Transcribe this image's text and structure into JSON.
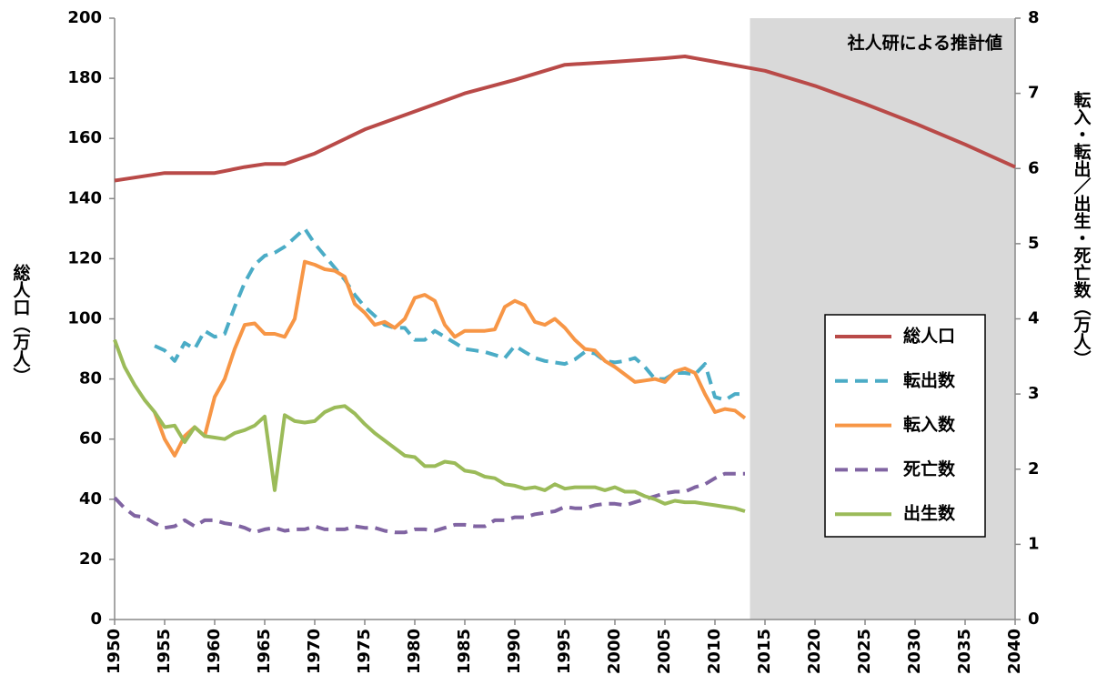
{
  "chart_data": {
    "type": "line",
    "y_label": "総人口（万人）",
    "y2_label": "転入・転出／出生・死亡数（万人）",
    "annotation": {
      "text": "社人研による推計値",
      "x_from": 2013.5,
      "x_to": 2040,
      "color": "#d9d9d9"
    },
    "xlim": [
      1950,
      2040
    ],
    "xticks": [
      1950,
      1955,
      1960,
      1965,
      1970,
      1975,
      1980,
      1985,
      1990,
      1995,
      2000,
      2005,
      2010,
      2015,
      2020,
      2025,
      2030,
      2035,
      2040
    ],
    "ylim": [
      0,
      200
    ],
    "yticks": [
      0,
      20,
      40,
      60,
      80,
      100,
      120,
      140,
      160,
      180,
      200
    ],
    "y2lim": [
      0,
      8
    ],
    "y2ticks": [
      0,
      1,
      2,
      3,
      4,
      5,
      6,
      7,
      8
    ],
    "series": [
      {
        "name": "総人口",
        "color": "#b94a48",
        "dashed": false,
        "axis": "y",
        "x": [
          1950,
          1952,
          1955,
          1960,
          1963,
          1965,
          1967,
          1970,
          1975,
          1980,
          1985,
          1990,
          1995,
          2000,
          2005,
          2007,
          2010,
          2015,
          2020,
          2025,
          2030,
          2035,
          2040
        ],
        "values": [
          146,
          147,
          148.5,
          148.5,
          150.5,
          151.5,
          151.5,
          155,
          163,
          169,
          175,
          179.5,
          184.5,
          185.5,
          186.7,
          187.3,
          185.5,
          182.5,
          177.5,
          171.5,
          165,
          158,
          150.5
        ]
      },
      {
        "name": "転出数",
        "color": "#4bacc6",
        "dashed": true,
        "axis": "y2",
        "x": [
          1954,
          1955,
          1956,
          1957,
          1958,
          1959,
          1960,
          1961,
          1962,
          1963,
          1964,
          1965,
          1966,
          1967,
          1968,
          1969,
          1970,
          1971,
          1972,
          1973,
          1974,
          1975,
          1976,
          1977,
          1978,
          1979,
          1980,
          1981,
          1982,
          1983,
          1984,
          1985,
          1986,
          1987,
          1988,
          1989,
          1990,
          1991,
          1992,
          1993,
          1994,
          1995,
          1996,
          1997,
          1998,
          1999,
          2000,
          2001,
          2002,
          2003,
          2004,
          2005,
          2006,
          2007,
          2008,
          2009,
          2010,
          2011,
          2012,
          2013
        ],
        "values": [
          3.64,
          3.58,
          3.44,
          3.68,
          3.6,
          3.84,
          3.76,
          3.8,
          4.16,
          4.48,
          4.72,
          4.84,
          4.88,
          4.96,
          5.08,
          5.2,
          5.0,
          4.84,
          4.68,
          4.52,
          4.32,
          4.16,
          4.04,
          3.92,
          3.88,
          3.88,
          3.72,
          3.72,
          3.84,
          3.76,
          3.68,
          3.6,
          3.58,
          3.56,
          3.52,
          3.48,
          3.64,
          3.56,
          3.48,
          3.44,
          3.42,
          3.4,
          3.46,
          3.56,
          3.54,
          3.44,
          3.42,
          3.44,
          3.48,
          3.36,
          3.2,
          3.2,
          3.28,
          3.28,
          3.26,
          3.4,
          2.96,
          2.92,
          3.0,
          3.0
        ]
      },
      {
        "name": "転入数",
        "color": "#f79646",
        "dashed": false,
        "axis": "y2",
        "x": [
          1954,
          1955,
          1956,
          1957,
          1958,
          1959,
          1960,
          1961,
          1962,
          1963,
          1964,
          1965,
          1966,
          1967,
          1968,
          1969,
          1970,
          1971,
          1972,
          1973,
          1974,
          1975,
          1976,
          1977,
          1978,
          1979,
          1980,
          1981,
          1982,
          1983,
          1984,
          1985,
          1986,
          1987,
          1988,
          1989,
          1990,
          1991,
          1992,
          1993,
          1994,
          1995,
          1996,
          1997,
          1998,
          1999,
          2000,
          2001,
          2002,
          2003,
          2004,
          2005,
          2006,
          2007,
          2008,
          2009,
          2010,
          2011,
          2012,
          2013
        ],
        "values": [
          2.76,
          2.4,
          2.18,
          2.44,
          2.56,
          2.44,
          2.96,
          3.2,
          3.6,
          3.92,
          3.94,
          3.8,
          3.8,
          3.76,
          4.0,
          4.76,
          4.72,
          4.66,
          4.64,
          4.56,
          4.2,
          4.08,
          3.92,
          3.96,
          3.88,
          4.0,
          4.28,
          4.32,
          4.24,
          3.92,
          3.76,
          3.84,
          3.84,
          3.84,
          3.86,
          4.16,
          4.24,
          4.18,
          3.96,
          3.92,
          4.0,
          3.88,
          3.72,
          3.6,
          3.58,
          3.44,
          3.36,
          3.26,
          3.16,
          3.18,
          3.2,
          3.16,
          3.3,
          3.34,
          3.28,
          3.0,
          2.76,
          2.8,
          2.78,
          2.68
        ]
      },
      {
        "name": "死亡数",
        "color": "#8064a2",
        "dashed": true,
        "axis": "y2",
        "x": [
          1950,
          1951,
          1952,
          1953,
          1954,
          1955,
          1956,
          1957,
          1958,
          1959,
          1960,
          1961,
          1962,
          1963,
          1964,
          1965,
          1966,
          1967,
          1968,
          1969,
          1970,
          1971,
          1972,
          1973,
          1974,
          1975,
          1976,
          1977,
          1978,
          1979,
          1980,
          1981,
          1982,
          1983,
          1984,
          1985,
          1986,
          1987,
          1988,
          1989,
          1990,
          1991,
          1992,
          1993,
          1994,
          1995,
          1996,
          1997,
          1998,
          1999,
          2000,
          2001,
          2002,
          2003,
          2004,
          2005,
          2006,
          2007,
          2008,
          2009,
          2010,
          2011,
          2012,
          2013
        ],
        "values": [
          1.62,
          1.48,
          1.38,
          1.36,
          1.28,
          1.22,
          1.24,
          1.32,
          1.24,
          1.32,
          1.32,
          1.28,
          1.26,
          1.22,
          1.16,
          1.2,
          1.22,
          1.18,
          1.2,
          1.2,
          1.24,
          1.2,
          1.2,
          1.2,
          1.24,
          1.22,
          1.22,
          1.18,
          1.16,
          1.16,
          1.2,
          1.2,
          1.18,
          1.22,
          1.26,
          1.26,
          1.24,
          1.24,
          1.32,
          1.32,
          1.36,
          1.36,
          1.4,
          1.42,
          1.44,
          1.5,
          1.48,
          1.48,
          1.52,
          1.54,
          1.54,
          1.52,
          1.56,
          1.6,
          1.64,
          1.68,
          1.7,
          1.7,
          1.76,
          1.8,
          1.88,
          1.94,
          1.94,
          1.94
        ]
      },
      {
        "name": "出生数",
        "color": "#9bbb59",
        "dashed": false,
        "axis": "y2",
        "x": [
          1950,
          1951,
          1952,
          1953,
          1954,
          1955,
          1956,
          1957,
          1958,
          1959,
          1960,
          1961,
          1962,
          1963,
          1964,
          1965,
          1966,
          1967,
          1968,
          1969,
          1970,
          1971,
          1972,
          1973,
          1974,
          1975,
          1976,
          1977,
          1978,
          1979,
          1980,
          1981,
          1982,
          1983,
          1984,
          1985,
          1986,
          1987,
          1988,
          1989,
          1990,
          1991,
          1992,
          1993,
          1994,
          1995,
          1996,
          1997,
          1998,
          1999,
          2000,
          2001,
          2002,
          2003,
          2004,
          2005,
          2006,
          2007,
          2008,
          2009,
          2010,
          2011,
          2012,
          2013
        ],
        "values": [
          3.72,
          3.36,
          3.12,
          2.92,
          2.76,
          2.56,
          2.58,
          2.36,
          2.56,
          2.44,
          2.42,
          2.4,
          2.48,
          2.52,
          2.58,
          2.7,
          1.72,
          2.72,
          2.64,
          2.62,
          2.64,
          2.76,
          2.82,
          2.84,
          2.74,
          2.6,
          2.48,
          2.38,
          2.28,
          2.18,
          2.16,
          2.04,
          2.04,
          2.1,
          2.08,
          1.98,
          1.96,
          1.9,
          1.88,
          1.8,
          1.78,
          1.74,
          1.76,
          1.72,
          1.8,
          1.74,
          1.76,
          1.76,
          1.76,
          1.72,
          1.76,
          1.7,
          1.7,
          1.64,
          1.6,
          1.54,
          1.58,
          1.56,
          1.56,
          1.54,
          1.52,
          1.5,
          1.48,
          1.44
        ]
      }
    ]
  }
}
